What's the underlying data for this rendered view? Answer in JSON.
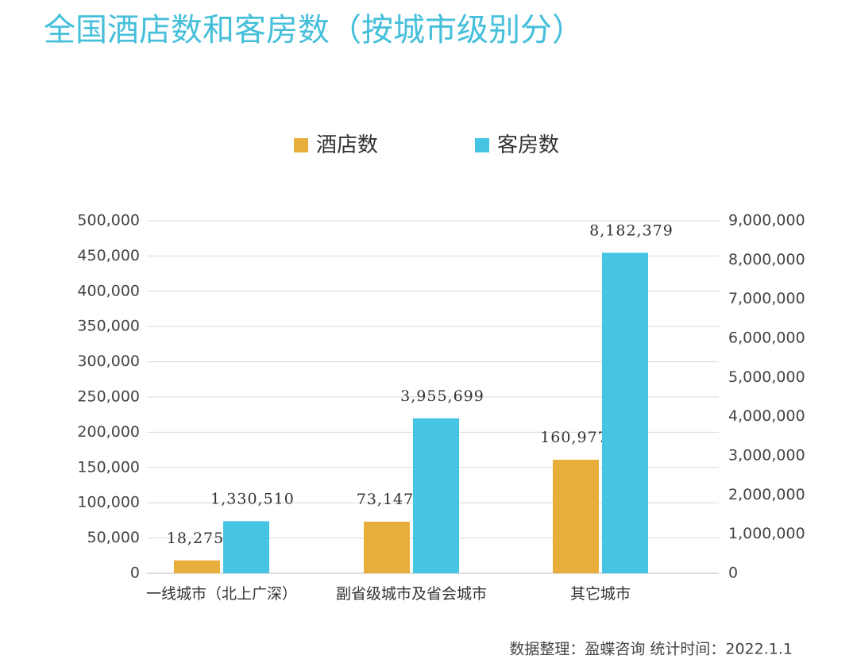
{
  "chart_data": {
    "type": "bar",
    "title": "全国酒店数和客房数（按城市级别分）",
    "categories": [
      "一线城市（北上广深）",
      "副省级城市及省会城市",
      "其它城市"
    ],
    "series": [
      {
        "name": "酒店数",
        "color": "#e8ae3b",
        "axis": "y",
        "values": [
          18275,
          73147,
          160977
        ],
        "value_labels": [
          "18,275",
          "73,147",
          "160,977"
        ]
      },
      {
        "name": "客房数",
        "color": "#45c5e3",
        "axis": "y2",
        "values": [
          1330510,
          3955699,
          8182379
        ],
        "value_labels": [
          "1,330,510",
          "3,955,699",
          "8,182,379"
        ]
      }
    ],
    "ylim": [
      0,
      500000
    ],
    "yticks": [
      0,
      {
        "value": 50000,
        "label": "50,000"
      },
      {
        "value": 100000,
        "label": "100,000"
      },
      {
        "value": 150000,
        "label": "150,000"
      },
      {
        "value": 200000,
        "label": "200,000"
      },
      {
        "value": 250000,
        "label": "250,000"
      },
      {
        "value": 300000,
        "label": "300,000"
      },
      {
        "value": 350000,
        "label": "350,000"
      },
      {
        "value": 400000,
        "label": "400,000"
      },
      {
        "value": 450000,
        "label": "450,000"
      },
      {
        "value": 500000,
        "label": "500,000"
      }
    ],
    "y2lim": [
      0,
      9000000
    ],
    "y2ticks": [
      0,
      {
        "value": 1000000,
        "label": "1,000,000"
      },
      {
        "value": 2000000,
        "label": "2,000,000"
      },
      {
        "value": 3000000,
        "label": "3,000,000"
      },
      {
        "value": 4000000,
        "label": "4,000,000"
      },
      {
        "value": 5000000,
        "label": "5,000,000"
      },
      {
        "value": 6000000,
        "label": "6,000,000"
      },
      {
        "value": 7000000,
        "label": "7,000,000"
      },
      {
        "value": 8000000,
        "label": "8,000,000"
      },
      {
        "value": 9000000,
        "label": "9,000,000"
      }
    ],
    "grid": true,
    "legend": "top",
    "source": "数据整理：盈蝶咨询  统计时间：2022.1.1"
  }
}
